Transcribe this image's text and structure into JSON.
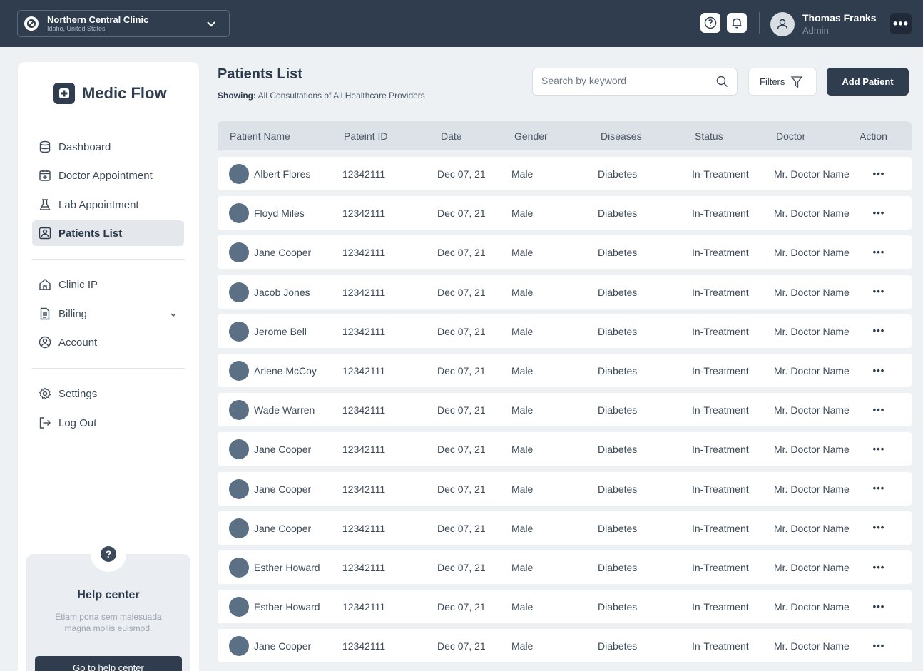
{
  "clinic": {
    "name": "Northern Central Clinic",
    "location": "Idaho, United States"
  },
  "user": {
    "name": "Thomas Franks",
    "role": "Admin"
  },
  "brand": {
    "name": "Medic Flow"
  },
  "sidebar": {
    "items": [
      {
        "label": "Dashboard",
        "icon": "database-icon"
      },
      {
        "label": "Doctor Appointment",
        "icon": "calendar-plus-icon"
      },
      {
        "label": "Lab Appointment",
        "icon": "flask-icon"
      },
      {
        "label": "Patients List",
        "icon": "id-card-icon",
        "active": true
      },
      {
        "label": "Clinic IP",
        "icon": "home-icon"
      },
      {
        "label": "Billing",
        "icon": "document-icon"
      },
      {
        "label": "Account",
        "icon": "user-circle-icon"
      },
      {
        "label": "Settings",
        "icon": "gear-icon"
      },
      {
        "label": "Log Out",
        "icon": "logout-icon"
      }
    ]
  },
  "help": {
    "title": "Help center",
    "description": "Etiam porta sem malesuada magna mollis euismod.",
    "button": "Go to help center"
  },
  "page": {
    "title": "Patients List",
    "subtitle_label": "Showing:",
    "subtitle_value": "All Consultations of All Healthcare Providers"
  },
  "toolbar": {
    "search_placeholder": "Search by keyword",
    "filters_label": "Filters",
    "add_label": "Add Patient"
  },
  "table": {
    "headers": [
      "Patient Name",
      "Pateint ID",
      "Date",
      "Gender",
      "Diseases",
      "Status",
      "Doctor",
      "Action"
    ],
    "rows": [
      [
        "Albert Flores",
        "12342111",
        "Dec 07, 21",
        "Male",
        "Diabetes",
        "In-Treatment",
        "Mr. Doctor Name"
      ],
      [
        "Floyd Miles",
        "12342111",
        "Dec 07, 21",
        "Male",
        "Diabetes",
        "In-Treatment",
        "Mr. Doctor Name"
      ],
      [
        "Jane Cooper",
        "12342111",
        "Dec 07, 21",
        "Male",
        "Diabetes",
        "In-Treatment",
        "Mr. Doctor Name"
      ],
      [
        "Jacob Jones",
        "12342111",
        "Dec 07, 21",
        "Male",
        "Diabetes",
        "In-Treatment",
        "Mr. Doctor Name"
      ],
      [
        "Jerome Bell",
        "12342111",
        "Dec 07, 21",
        "Male",
        "Diabetes",
        "In-Treatment",
        "Mr. Doctor Name"
      ],
      [
        "Arlene McCoy",
        "12342111",
        "Dec 07, 21",
        "Male",
        "Diabetes",
        "In-Treatment",
        "Mr. Doctor Name"
      ],
      [
        "Wade Warren",
        "12342111",
        "Dec 07, 21",
        "Male",
        "Diabetes",
        "In-Treatment",
        "Mr. Doctor Name"
      ],
      [
        "Jane Cooper",
        "12342111",
        "Dec 07, 21",
        "Male",
        "Diabetes",
        "In-Treatment",
        "Mr. Doctor Name"
      ],
      [
        "Jane Cooper",
        "12342111",
        "Dec 07, 21",
        "Male",
        "Diabetes",
        "In-Treatment",
        "Mr. Doctor Name"
      ],
      [
        "Jane Cooper",
        "12342111",
        "Dec 07, 21",
        "Male",
        "Diabetes",
        "In-Treatment",
        "Mr. Doctor Name"
      ],
      [
        "Esther Howard",
        "12342111",
        "Dec 07, 21",
        "Male",
        "Diabetes",
        "In-Treatment",
        "Mr. Doctor Name"
      ],
      [
        "Esther Howard",
        "12342111",
        "Dec 07, 21",
        "Male",
        "Diabetes",
        "In-Treatment",
        "Mr. Doctor Name"
      ],
      [
        "Jane Cooper",
        "12342111",
        "Dec 07, 21",
        "Male",
        "Diabetes",
        "In-Treatment",
        "Mr. Doctor Name"
      ]
    ]
  },
  "colors": {
    "topbar": "#2f3d4e",
    "accent": "#2f3d4e",
    "background": "#eef1f4",
    "avatar": "#5b6f85"
  }
}
